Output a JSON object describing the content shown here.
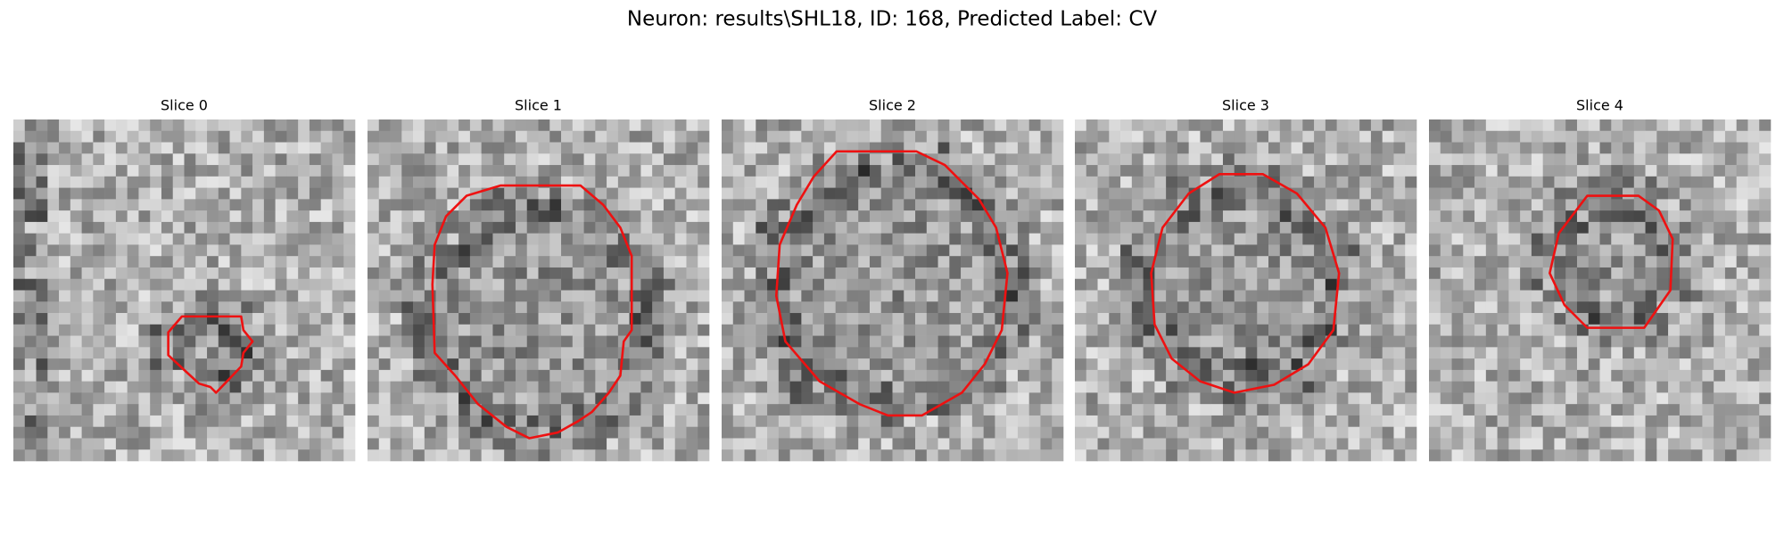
{
  "title": "Neuron: results\\SHL18, ID: 168, Predicted Label: CV",
  "panels": [
    {
      "title": "Slice 0"
    },
    {
      "title": "Slice 1"
    },
    {
      "title": "Slice 2"
    },
    {
      "title": "Slice 3"
    },
    {
      "title": "Slice 4"
    }
  ]
}
